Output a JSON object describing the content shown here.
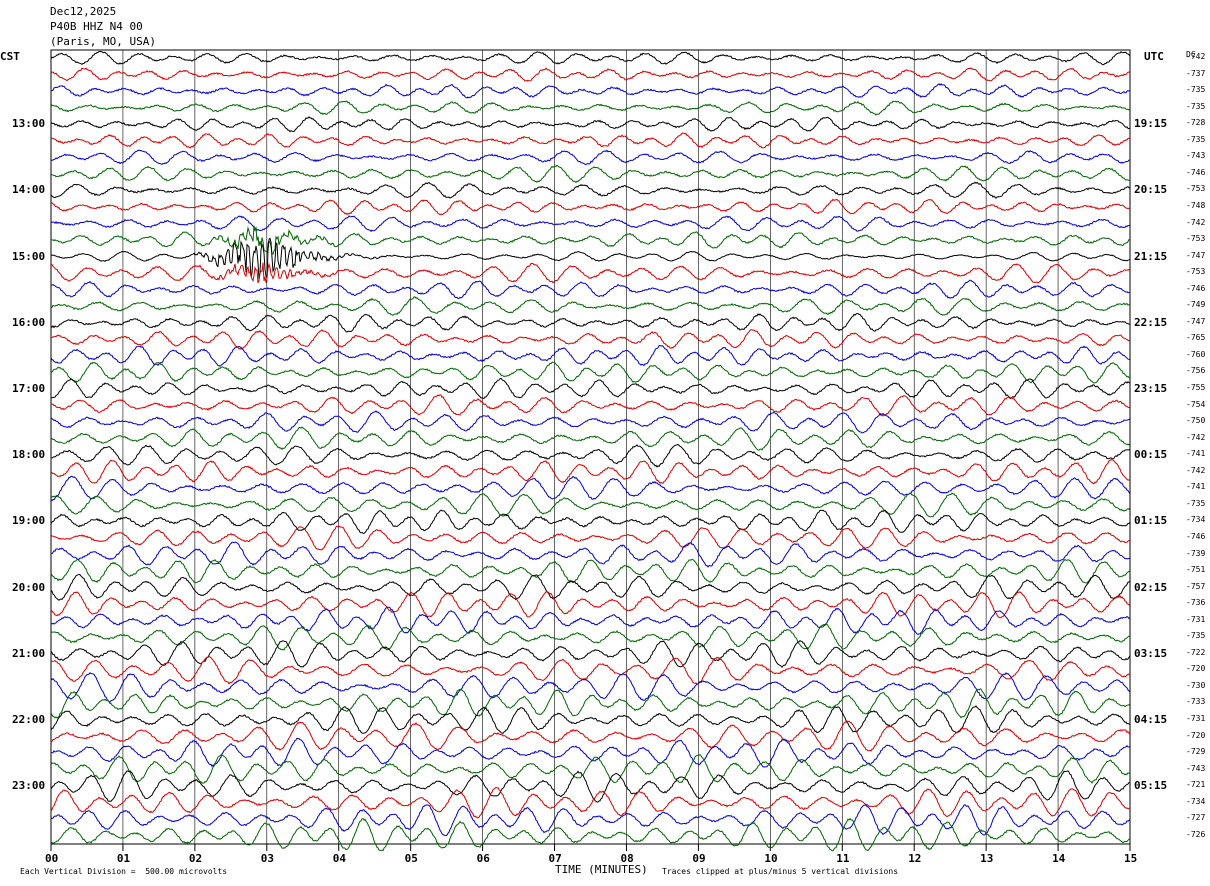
{
  "header": {
    "date": "Dec12,2025",
    "station": "P40B HHZ N4 00",
    "location": "(Paris, MO, USA)"
  },
  "left_zone": "CST",
  "right_zone": "UTC",
  "dc_label": "DC",
  "chart_data": {
    "type": "line",
    "title": "P40B HHZ N4 00",
    "xlabel": "TIME (MINUTES)",
    "x_ticks": [
      "00",
      "01",
      "02",
      "03",
      "04",
      "05",
      "06",
      "07",
      "08",
      "09",
      "10",
      "11",
      "12",
      "13",
      "14",
      "15"
    ],
    "xlim": [
      0,
      15
    ],
    "rows_per_hour": 4,
    "trace_colors": [
      "#000000",
      "#d40000",
      "#0000c8",
      "#006400"
    ],
    "left_hour_labels": [
      "13:00",
      "14:00",
      "15:00",
      "16:00",
      "17:00",
      "18:00",
      "19:00",
      "20:00",
      "21:00",
      "22:00",
      "23:00"
    ],
    "right_hour_labels": [
      "19:15",
      "20:15",
      "21:15",
      "22:15",
      "23:15",
      "00:15",
      "01:15",
      "02:15",
      "03:15",
      "04:15",
      "05:15"
    ],
    "dc_offsets": [
      "-742",
      "-737",
      "-735",
      "-735",
      "-728",
      "-735",
      "-743",
      "-746",
      "-753",
      "-748",
      "-742",
      "-753",
      "-747",
      "-753",
      "-746",
      "-749",
      "-747",
      "-765",
      "-760",
      "-756",
      "-755",
      "-754",
      "-750",
      "-742",
      "-741",
      "-742",
      "-741",
      "-735",
      "-734",
      "-746",
      "-739",
      "-751",
      "-757",
      "-736",
      "-731",
      "-735",
      "-722",
      "-720",
      "-730",
      "-733",
      "-731",
      "-720",
      "-729",
      "-743",
      "-721",
      "-734",
      "-727",
      "-726"
    ],
    "event": {
      "description_row": 12,
      "start_minute": 1.8,
      "peak_minute": 2.95,
      "end_minute": 4.8
    }
  },
  "footer": {
    "scale_note": "Each Vertical Division =  500.00 microvolts",
    "axis_title": "TIME (MINUTES)",
    "clip_note": "Traces clipped at plus/minus 5 vertical divisions"
  }
}
